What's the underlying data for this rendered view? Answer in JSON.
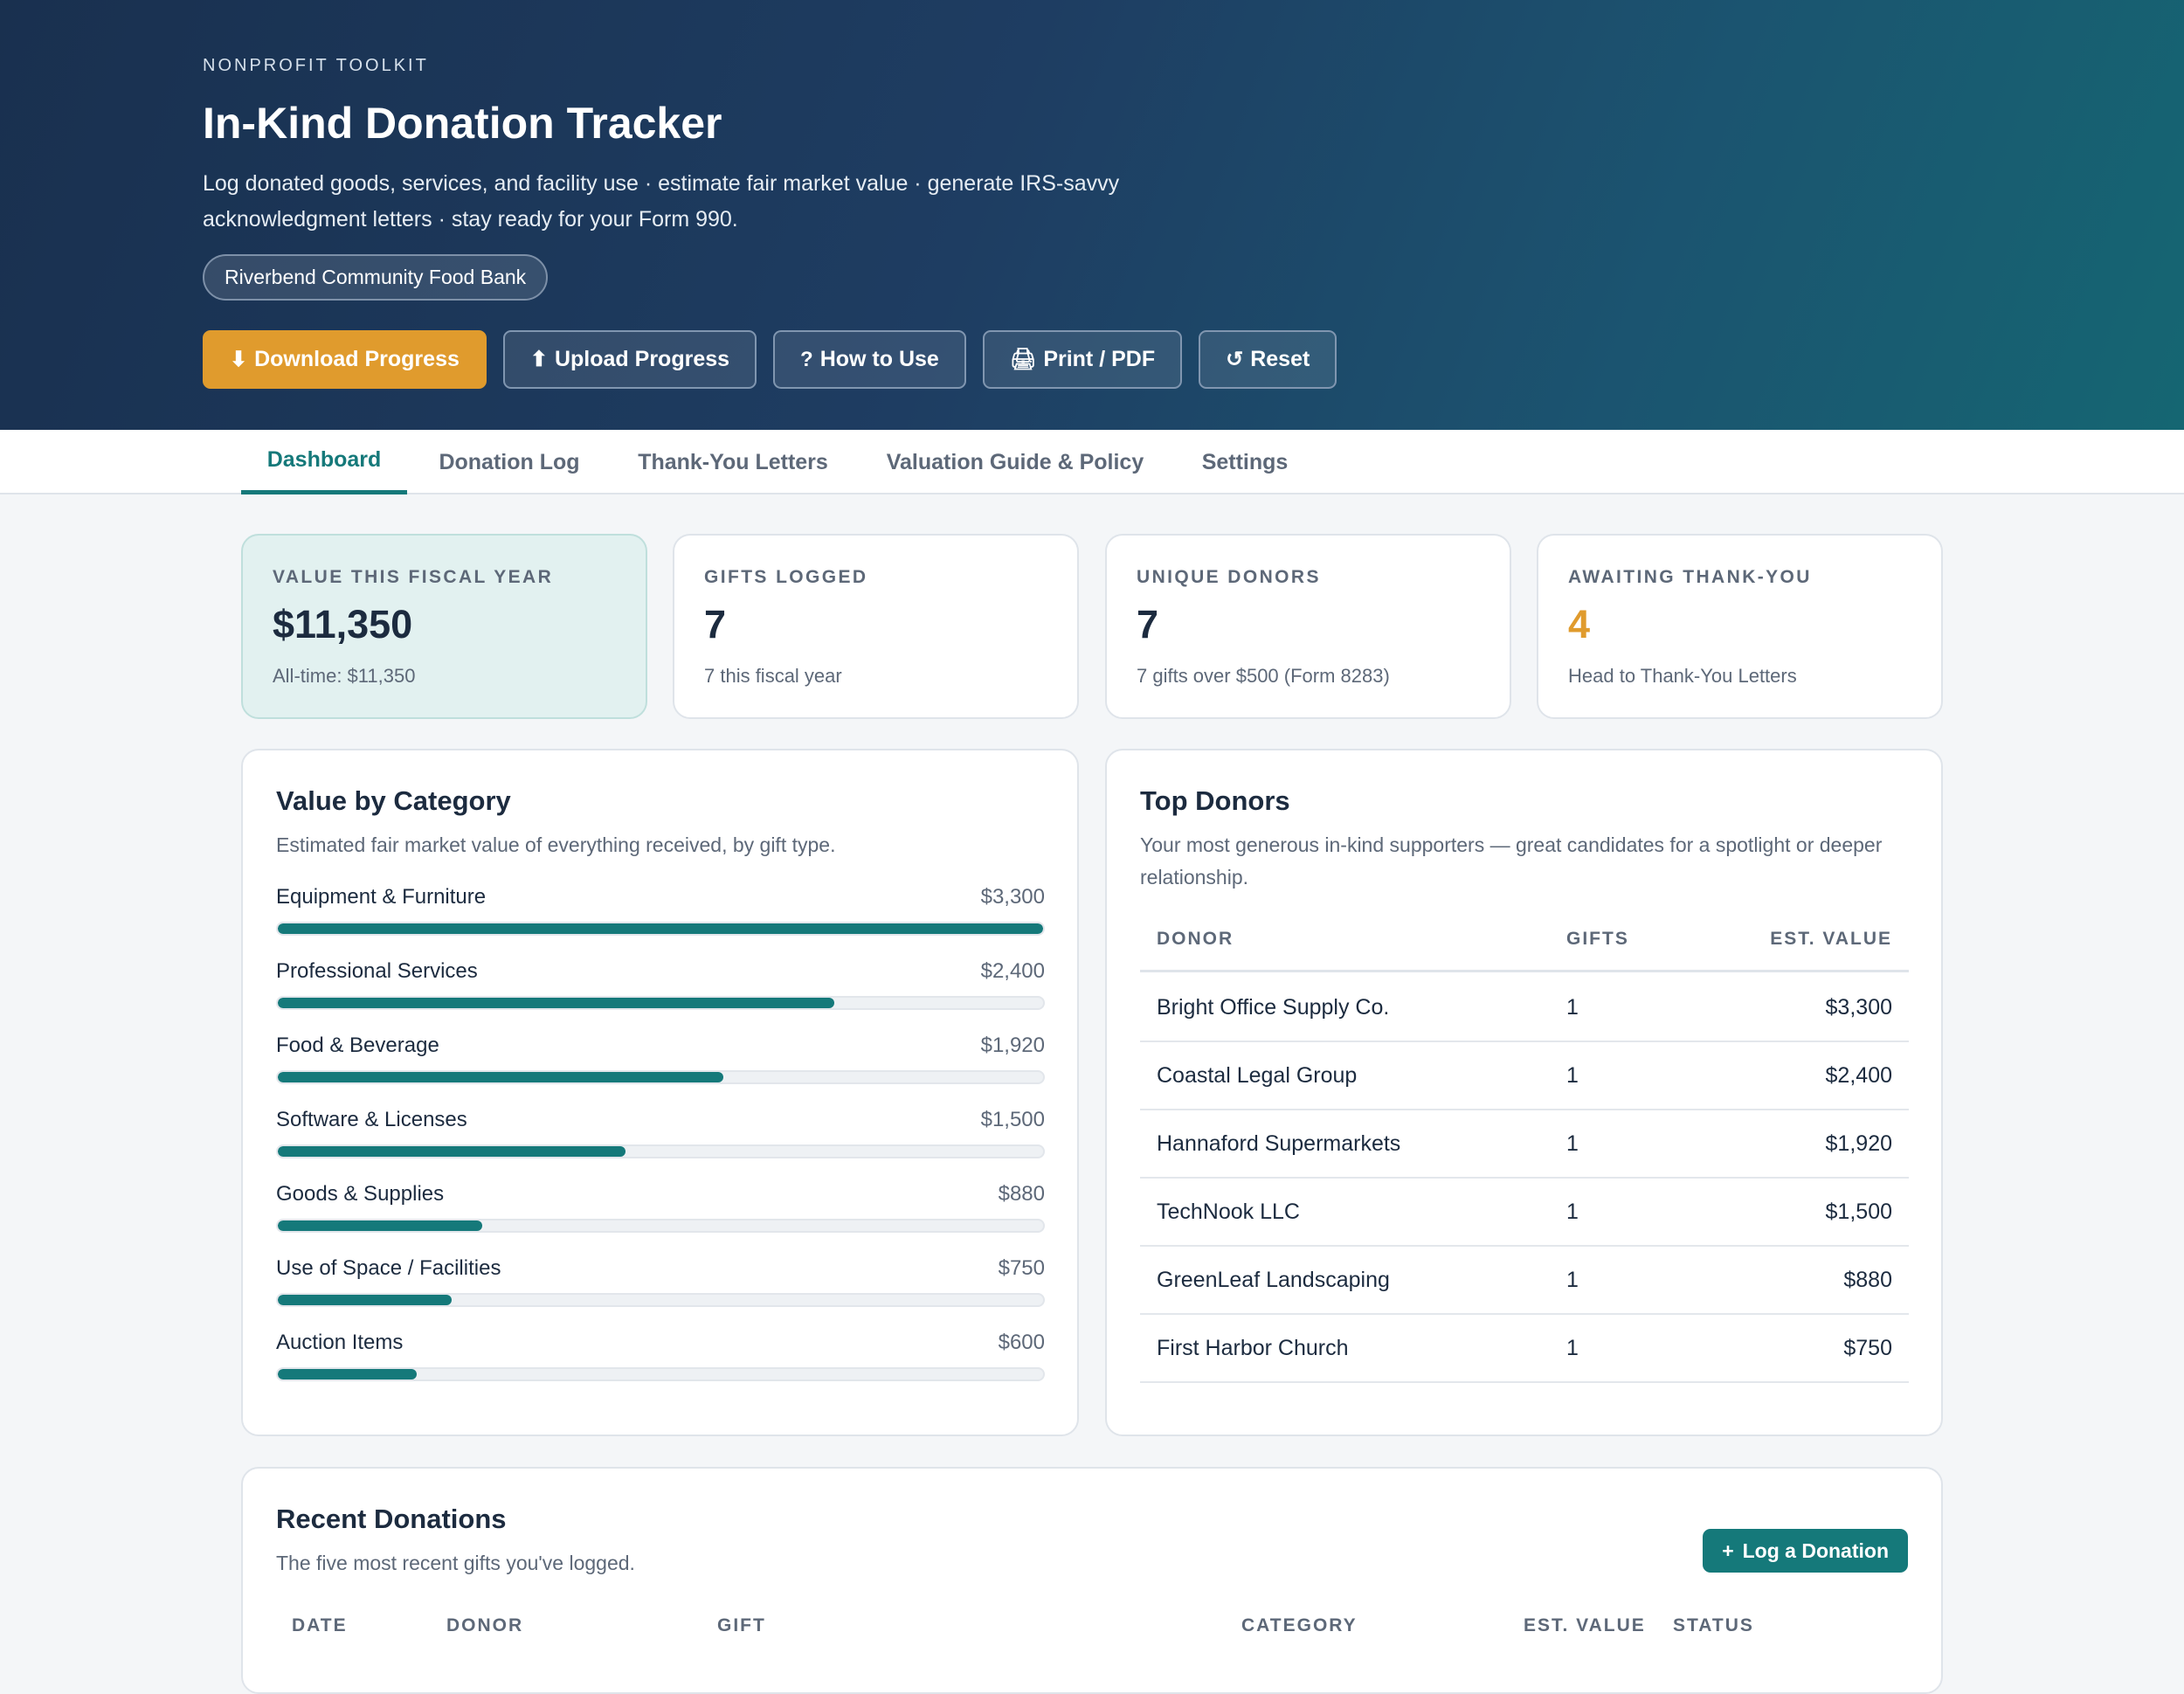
{
  "header": {
    "eyebrow": "NONPROFIT TOOLKIT",
    "title": "In-Kind Donation Tracker",
    "description": "Log donated goods, services, and facility use · estimate fair market value · generate IRS-savvy acknowledgment letters · stay ready for your Form 990.",
    "organization": "Riverbend Community Food Bank",
    "actions": [
      {
        "icon": "⬇",
        "icon_name": "download-icon",
        "label": "Download Progress"
      },
      {
        "icon": "⬆",
        "icon_name": "upload-icon",
        "label": "Upload Progress"
      },
      {
        "icon": "?",
        "icon_name": "help-icon",
        "label": "How to Use"
      },
      {
        "icon": "🖨",
        "icon_name": "printer-icon",
        "label": "Print / PDF"
      },
      {
        "icon": "↺",
        "icon_name": "reset-icon",
        "label": "Reset"
      }
    ]
  },
  "tabs": [
    {
      "label": "Dashboard",
      "active": true
    },
    {
      "label": "Donation Log",
      "active": false
    },
    {
      "label": "Thank-You Letters",
      "active": false
    },
    {
      "label": "Valuation Guide & Policy",
      "active": false
    },
    {
      "label": "Settings",
      "active": false
    }
  ],
  "stats": [
    {
      "label": "VALUE THIS FISCAL YEAR",
      "value": "$11,350",
      "sub": "All-time: $11,350"
    },
    {
      "label": "GIFTS LOGGED",
      "value": "7",
      "sub": "7 this fiscal year"
    },
    {
      "label": "UNIQUE DONORS",
      "value": "7",
      "sub": "7 gifts over $500 (Form 8283)"
    },
    {
      "label": "AWAITING THANK-YOU",
      "value": "4",
      "sub": "Head to Thank-You Letters"
    }
  ],
  "categories_panel": {
    "title": "Value by Category",
    "subtitle": "Estimated fair market value of everything received, by gift type.",
    "items": [
      {
        "name": "Equipment & Furniture",
        "value_label": "$3,300",
        "value": 3300
      },
      {
        "name": "Professional Services",
        "value_label": "$2,400",
        "value": 2400
      },
      {
        "name": "Food & Beverage",
        "value_label": "$1,920",
        "value": 1920
      },
      {
        "name": "Software & Licenses",
        "value_label": "$1,500",
        "value": 1500
      },
      {
        "name": "Goods & Supplies",
        "value_label": "$880",
        "value": 880
      },
      {
        "name": "Use of Space / Facilities",
        "value_label": "$750",
        "value": 750
      },
      {
        "name": "Auction Items",
        "value_label": "$600",
        "value": 600
      }
    ]
  },
  "donors_panel": {
    "title": "Top Donors",
    "subtitle": "Your most generous in-kind supporters — great candidates for a spotlight or deeper relationship.",
    "columns": [
      "DONOR",
      "GIFTS",
      "EST. VALUE"
    ],
    "rows": [
      {
        "donor": "Bright Office Supply Co.",
        "gifts": "1",
        "value": "$3,300"
      },
      {
        "donor": "Coastal Legal Group",
        "gifts": "1",
        "value": "$2,400"
      },
      {
        "donor": "Hannaford Supermarkets",
        "gifts": "1",
        "value": "$1,920"
      },
      {
        "donor": "TechNook LLC",
        "gifts": "1",
        "value": "$1,500"
      },
      {
        "donor": "GreenLeaf Landscaping",
        "gifts": "1",
        "value": "$880"
      },
      {
        "donor": "First Harbor Church",
        "gifts": "1",
        "value": "$750"
      }
    ]
  },
  "recent_panel": {
    "title": "Recent Donations",
    "subtitle": "The five most recent gifts you've logged.",
    "button_icon": "+",
    "button_label": "Log a Donation",
    "columns": [
      "DATE",
      "DONOR",
      "GIFT",
      "CATEGORY",
      "EST. VALUE",
      "STATUS"
    ]
  },
  "colors": {
    "accent": "#15797a",
    "warning": "#e09b2d",
    "header_start": "#19304f",
    "header_end": "#156672"
  }
}
